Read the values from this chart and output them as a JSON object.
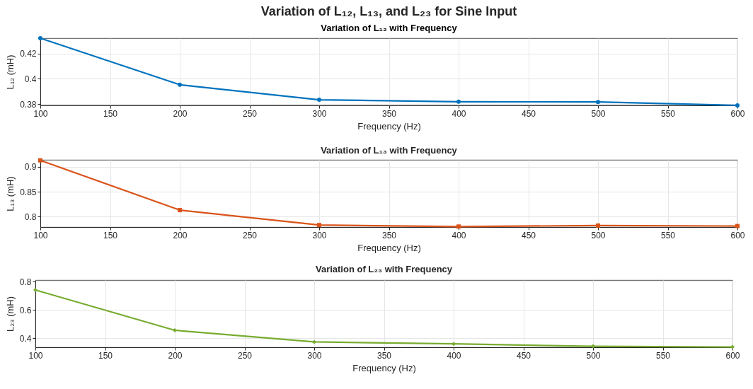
{
  "chart_data": [
    {
      "type": "line",
      "title": "Variation of L₁₂, L₁₃, and L₂₃ for Sine Input",
      "subtitle": "Variation of L₁₂ with Frequency",
      "xlabel": "Frequency (Hz)",
      "ylabel": "L₁₂ (mH)",
      "x": [
        100,
        200,
        300,
        400,
        500,
        600
      ],
      "series": [
        {
          "color": "#0072bd",
          "values": [
            0.432,
            0.3953,
            0.3834,
            0.3819,
            0.3817,
            0.379
          ]
        }
      ],
      "xlim": [
        100,
        600
      ],
      "xticks": [
        100,
        150,
        200,
        250,
        300,
        350,
        400,
        450,
        500,
        550,
        600
      ],
      "ylim": [
        0.379,
        0.432
      ],
      "yticks": [
        0.38,
        0.4,
        0.42
      ],
      "grid": true,
      "marker": "circle",
      "line_style": "solid"
    },
    {
      "type": "line",
      "title": "Variation of L₁₃ with Frequency",
      "xlabel": "Frequency (Hz)",
      "ylabel": "L₁₃ (mH)",
      "x": [
        100,
        200,
        300,
        400,
        500,
        600
      ],
      "series": [
        {
          "color": "#d95319",
          "values": [
            0.913,
            0.813,
            0.783,
            0.78,
            0.782,
            0.781
          ]
        }
      ],
      "xlim": [
        100,
        600
      ],
      "xticks": [
        100,
        150,
        200,
        250,
        300,
        350,
        400,
        450,
        500,
        550,
        600
      ],
      "ylim": [
        0.779,
        0.914
      ],
      "yticks": [
        0.8,
        0.85,
        0.9
      ],
      "grid": true,
      "marker": "square",
      "line_style": "solid"
    },
    {
      "type": "line",
      "title": "Variation of L₂₃ with Frequency",
      "xlabel": "Frequency (Hz)",
      "ylabel": "L₂₃ (mH)",
      "x": [
        100,
        200,
        300,
        400,
        500,
        600
      ],
      "series": [
        {
          "color": "#77ac30",
          "values": [
            0.74,
            0.456,
            0.374,
            0.36,
            0.343,
            0.338
          ]
        }
      ],
      "xlim": [
        100,
        600
      ],
      "xticks": [
        100,
        150,
        200,
        250,
        300,
        350,
        400,
        450,
        500,
        550,
        600
      ],
      "ylim": [
        0.336,
        0.81
      ],
      "yticks": [
        0.4,
        0.6,
        0.8
      ],
      "grid": true,
      "marker": "diamond",
      "line_style": "solid"
    }
  ]
}
